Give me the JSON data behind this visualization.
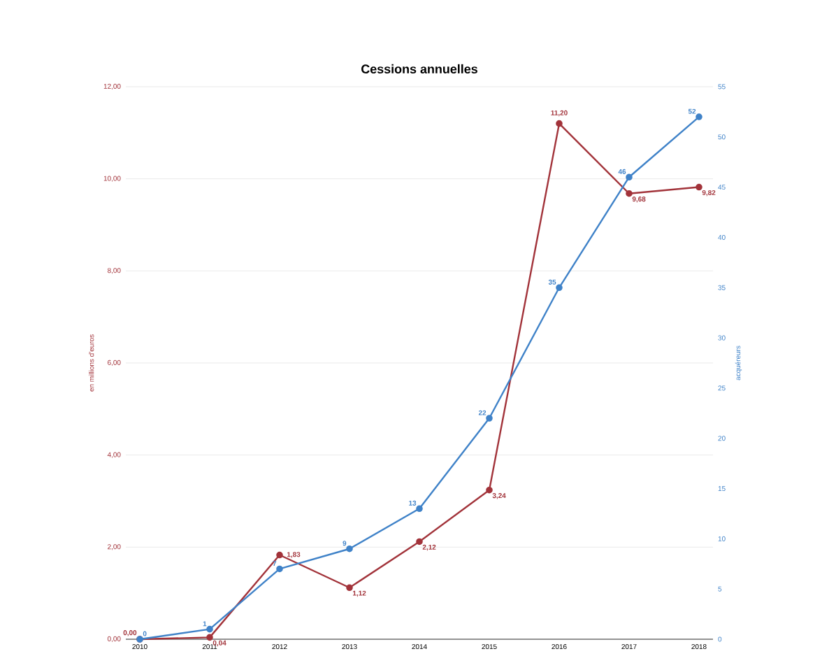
{
  "chart_data": {
    "type": "line",
    "title": "Cessions annuelles",
    "ylabel": "en millions d'euros",
    "y2label": "acquéreurs",
    "categories": [
      "2010",
      "2011",
      "2012",
      "2013",
      "2014",
      "2015",
      "2016",
      "2017",
      "2018"
    ],
    "series": [
      {
        "color": "#a2333a",
        "values": [
          0.0,
          0.04,
          1.83,
          1.12,
          2.12,
          3.24,
          11.2,
          9.68,
          9.82
        ],
        "value_labels": [
          "0,00",
          "0,04",
          "1,83",
          "1,12",
          "2,12",
          "3,24",
          "11,20",
          "9,68",
          "9,82"
        ]
      },
      {
        "color": "#3f82c8",
        "axis": "y2",
        "values": [
          0,
          1,
          7,
          9,
          13,
          22,
          35,
          46,
          52
        ],
        "value_labels": [
          "0",
          "1",
          "7",
          "9",
          "13",
          "22",
          "35",
          "46",
          "52"
        ]
      }
    ],
    "ylim": [
      0,
      12
    ],
    "yticks": [
      {
        "value": 0,
        "label": "0,00"
      },
      {
        "value": 2,
        "label": "2,00"
      },
      {
        "value": 4,
        "label": "4,00"
      },
      {
        "value": 6,
        "label": "6,00"
      },
      {
        "value": 8,
        "label": "8,00"
      },
      {
        "value": 10,
        "label": "10,00"
      },
      {
        "value": 12,
        "label": "12,00"
      }
    ],
    "y2lim": [
      0,
      55
    ],
    "y2ticks": [
      0,
      5,
      10,
      15,
      20,
      25,
      30,
      35,
      40,
      45,
      50,
      55
    ],
    "grid": "y",
    "marker": "circle",
    "line_style": "solid"
  }
}
